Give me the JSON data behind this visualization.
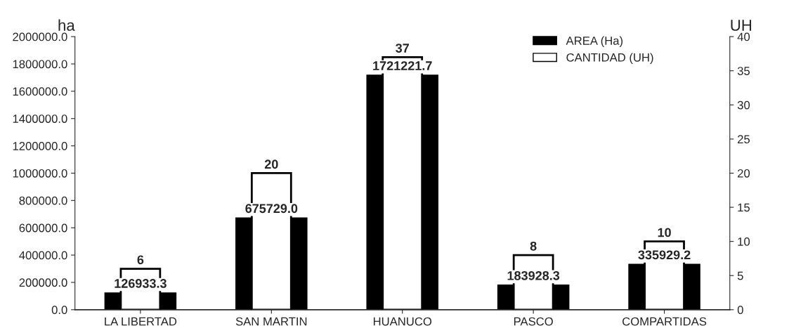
{
  "chart_data": {
    "type": "bar",
    "categories": [
      "LA LIBERTAD",
      "SAN MARTIN",
      "HUANUCO",
      "PASCO",
      "COMPARTIDAS"
    ],
    "ylabel": "ha",
    "y2label": "UH",
    "series": [
      {
        "name": "AREA (Ha)",
        "color": "#000000",
        "values": [
          126933.3,
          675729.0,
          1721221.7,
          183928.3,
          335929.2
        ],
        "value_labels": [
          "126933.3",
          "675729.0",
          "1721221.7",
          "183928.3",
          "335929.2"
        ]
      },
      {
        "name": "CANTIDAD (UH)",
        "color": "#ffffff",
        "axis": "y2",
        "values": [
          6,
          20,
          37,
          8,
          10
        ],
        "value_labels": [
          "6",
          "20",
          "37",
          "8",
          "10"
        ]
      }
    ],
    "ylim": [
      0,
      2000000
    ],
    "yticks": [
      {
        "value": 0,
        "label": "0.0"
      },
      {
        "value": 200000,
        "label": "200000.0"
      },
      {
        "value": 400000,
        "label": "400000.0"
      },
      {
        "value": 600000,
        "label": "600000.0"
      },
      {
        "value": 800000,
        "label": "800000.0"
      },
      {
        "value": 1000000,
        "label": "1000000.0"
      },
      {
        "value": 1200000,
        "label": "1200000.0"
      },
      {
        "value": 1400000,
        "label": "1400000.0"
      },
      {
        "value": 1600000,
        "label": "1600000.0"
      },
      {
        "value": 1800000,
        "label": "1800000.0"
      },
      {
        "value": 2000000,
        "label": "2000000.0"
      }
    ],
    "y2lim": [
      0,
      40
    ],
    "y2ticks": [
      0,
      5,
      10,
      15,
      20,
      25,
      30,
      35,
      40
    ],
    "legend": "top right",
    "grid": false
  }
}
